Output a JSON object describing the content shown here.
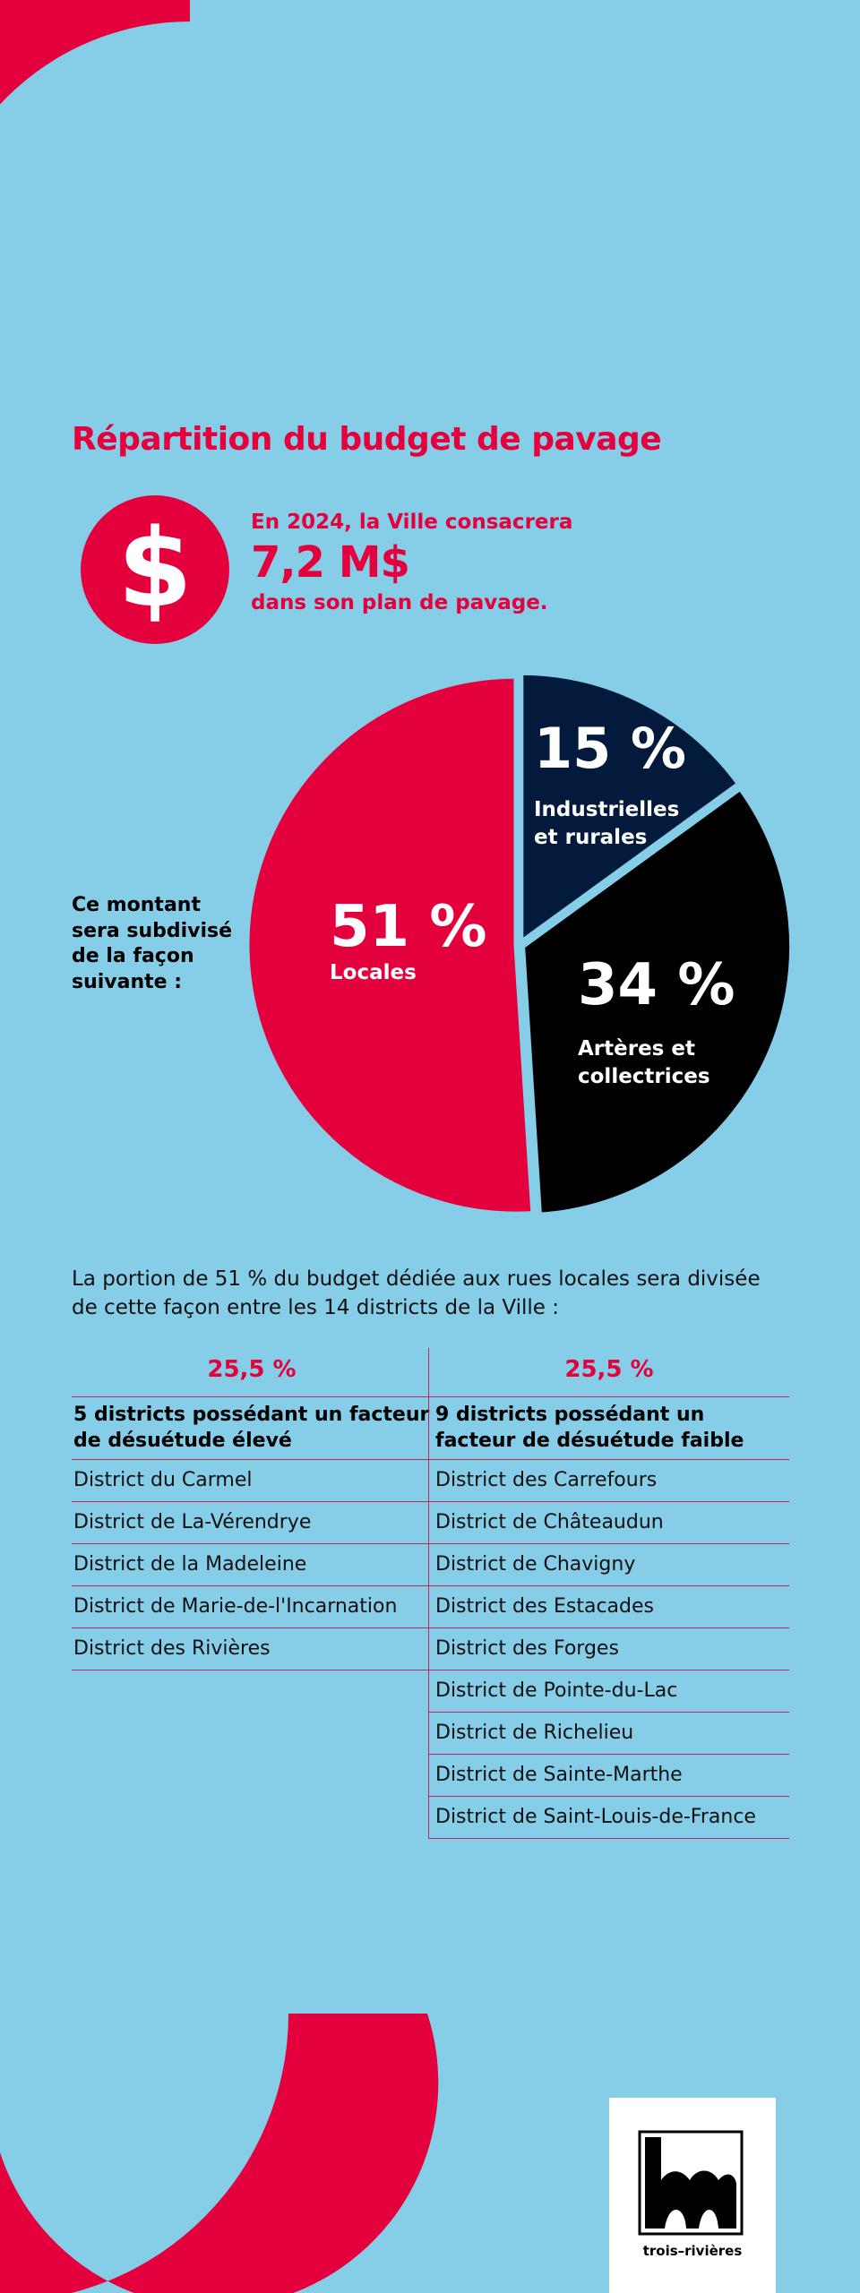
{
  "colors": {
    "background": "#86cde8",
    "accent": "#e4003d",
    "navy": "#031a3d",
    "black": "#000000"
  },
  "title": "Répartition du budget de pavage",
  "intro": {
    "icon": "dollar-sign-icon",
    "icon_glyph": "$",
    "line1": "En 2024, la Ville consacrera",
    "amount": "7,2 M$",
    "line2": "dans son plan de pavage."
  },
  "lead_text": [
    "Ce montant",
    "sera subdivisé",
    "de la façon",
    "suivante :"
  ],
  "chart_data": {
    "type": "pie",
    "slices": [
      {
        "label": "Industrielles et rurales",
        "value": 15,
        "display": "15 %",
        "label_lines": [
          "Industrielles",
          "et rurales"
        ],
        "color": "#031a3d"
      },
      {
        "label": "Artères et collectrices",
        "value": 34,
        "display": "34 %",
        "label_lines": [
          "Artères et",
          "collectrices"
        ],
        "color": "#000000"
      },
      {
        "label": "Locales",
        "value": 51,
        "display": "51 %",
        "label_lines": [
          "Locales"
        ],
        "color": "#e4003d"
      }
    ]
  },
  "paragraph": "La portion de 51 % du budget dédiée aux rues locales sera divisée de cette façon entre les 14 districts de la Ville :",
  "table": {
    "left": {
      "pct": "25,5 %",
      "header": "5 districts possédant un facteur de désuétude élevé",
      "rows": [
        "District du Carmel",
        "District de La-Vérendrye",
        "District de la Madeleine",
        "District de Marie-de-l'Incarnation",
        "District des Rivières"
      ]
    },
    "right": {
      "pct": "25,5 %",
      "header": "9 districts possédant un facteur de désuétude faible",
      "rows": [
        "District des Carrefours",
        "District de Châteaudun",
        "District de Chavigny",
        "District des Estacades",
        "District des Forges",
        "District de Pointe-du-Lac",
        "District de Richelieu",
        "District de Sainte-Marthe",
        "District de Saint-Louis-de-France"
      ]
    }
  },
  "logo": {
    "text": "trois–rivières"
  }
}
